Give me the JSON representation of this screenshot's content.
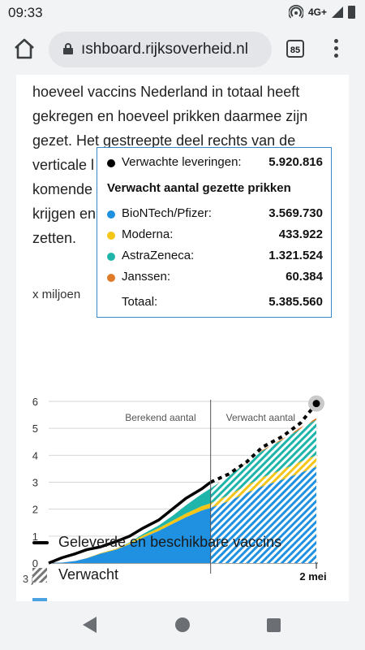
{
  "status_bar": {
    "time": "09:33",
    "network": "4G+"
  },
  "browser": {
    "url": "ıshboard.rijksoverheid.nl",
    "tab_count": "85"
  },
  "article": {
    "lines": [
      "hoeveel vaccins Nederland in totaal heeft",
      "gekregen en hoeveel prikken daarmee zijn",
      "gezet. Het gestreepte deel rechts van de",
      "verticale l",
      "komende",
      "krijgen en",
      "zetten."
    ]
  },
  "chart": {
    "y_unit": "x miljoen",
    "label_left": "Berekend aantal",
    "label_right": "Verwacht aantal",
    "x_start": "3 jan",
    "x_end": "2 mei"
  },
  "chart_data": {
    "type": "area",
    "ylim": [
      0,
      6
    ],
    "yticks": [
      "0",
      "1",
      "2",
      "3",
      "4",
      "5",
      "6"
    ],
    "x": [
      0,
      6,
      12,
      17,
      23,
      30,
      36,
      42,
      49,
      55,
      61,
      68,
      72,
      80,
      88,
      95,
      104,
      112,
      119
    ],
    "split_x": 72,
    "series": [
      {
        "name": "BioNTech/Pfizer",
        "values": [
          0,
          0.02,
          0.08,
          0.18,
          0.35,
          0.5,
          0.7,
          0.95,
          1.2,
          1.45,
          1.7,
          1.95,
          2.05,
          2.3,
          2.6,
          2.85,
          3.1,
          3.35,
          3.57
        ]
      },
      {
        "name": "Moderna",
        "values": [
          0,
          0,
          0,
          0.01,
          0.02,
          0.03,
          0.05,
          0.08,
          0.1,
          0.12,
          0.14,
          0.16,
          0.17,
          0.22,
          0.28,
          0.33,
          0.37,
          0.41,
          0.43
        ]
      },
      {
        "name": "AstraZeneca",
        "values": [
          0,
          0,
          0,
          0,
          0,
          0,
          0.02,
          0.05,
          0.1,
          0.18,
          0.3,
          0.45,
          0.55,
          0.7,
          0.85,
          0.98,
          1.1,
          1.22,
          1.32
        ]
      },
      {
        "name": "Janssen",
        "values": [
          0,
          0,
          0,
          0,
          0,
          0,
          0,
          0,
          0,
          0,
          0,
          0,
          0,
          0.01,
          0.02,
          0.03,
          0.04,
          0.05,
          0.06
        ]
      },
      {
        "name": "Geleverde en beschikbare vaccins",
        "values": [
          0,
          0.2,
          0.35,
          0.5,
          0.6,
          0.8,
          1.0,
          1.3,
          1.6,
          2.0,
          2.4,
          2.75,
          3.0,
          3.3,
          3.75,
          4.3,
          4.7,
          5.2,
          5.92
        ]
      }
    ]
  },
  "tooltip": {
    "delivery_label": "Verwachte leveringen:",
    "delivery_value": "5.920.816",
    "heading": "Verwacht aantal gezette prikken",
    "rows": [
      {
        "label": "BioNTech/Pfizer:",
        "value": "3.569.730",
        "color": "#1f91e0"
      },
      {
        "label": "Moderna:",
        "value": "433.922",
        "color": "#f5c518"
      },
      {
        "label": "AstraZeneca:",
        "value": "1.321.524",
        "color": "#1fb5aa"
      },
      {
        "label": "Janssen:",
        "value": "60.384",
        "color": "#e07b2a"
      }
    ],
    "total_label": "Totaal:",
    "total_value": "5.385.560"
  },
  "legend": {
    "delivered_label": "Geleverde en beschikbare vaccins",
    "expected_label": "Verwacht"
  },
  "colors": {
    "pfizer": "#1f91e0",
    "moderna": "#f5c518",
    "astrazeneca": "#1fb5aa",
    "janssen": "#e07b2a",
    "line": "#000000",
    "tooltip_border": "#3a87c8"
  }
}
